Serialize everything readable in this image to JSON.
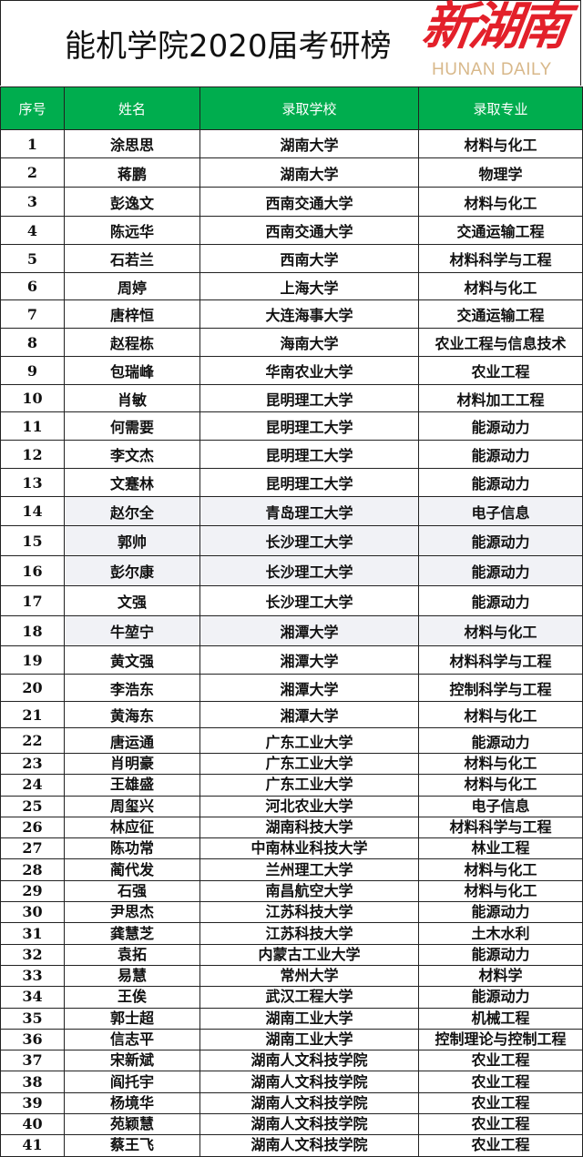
{
  "title": "能机学院2020届考研榜",
  "columns": [
    "序号",
    "姓名",
    "录取学校",
    "录取专业"
  ],
  "colors": {
    "header_bg": "#00ad4e",
    "shaded_row": "#f1f2f6",
    "watermark_red": "#e3202a"
  },
  "rows": [
    {
      "no": "1",
      "name": "涂思思",
      "school": "湖南大学",
      "major": "材料与化工"
    },
    {
      "no": "2",
      "name": "蒋鹏",
      "school": "湖南大学",
      "major": "物理学"
    },
    {
      "no": "3",
      "name": "彭逸文",
      "school": "西南交通大学",
      "major": "材料与化工"
    },
    {
      "no": "4",
      "name": "陈远华",
      "school": "西南交通大学",
      "major": "交通运输工程"
    },
    {
      "no": "5",
      "name": "石若兰",
      "school": "西南大学",
      "major": "材料科学与工程"
    },
    {
      "no": "6",
      "name": "周婷",
      "school": "上海大学",
      "major": "材料与化工"
    },
    {
      "no": "7",
      "name": "唐梓恒",
      "school": "大连海事大学",
      "major": "交通运输工程"
    },
    {
      "no": "8",
      "name": "赵程栋",
      "school": "海南大学",
      "major": "农业工程与信息技术"
    },
    {
      "no": "9",
      "name": "包瑞峰",
      "school": "华南农业大学",
      "major": "农业工程"
    },
    {
      "no": "10",
      "name": "肖敏",
      "school": "昆明理工大学",
      "major": "材料加工工程"
    },
    {
      "no": "11",
      "name": "何需要",
      "school": "昆明理工大学",
      "major": "能源动力"
    },
    {
      "no": "12",
      "name": "李文杰",
      "school": "昆明理工大学",
      "major": "能源动力"
    },
    {
      "no": "13",
      "name": "文蹇林",
      "school": "昆明理工大学",
      "major": "能源动力"
    },
    {
      "no": "14",
      "name": "赵尔全",
      "school": "青岛理工大学",
      "major": "电子信息",
      "shaded": true
    },
    {
      "no": "15",
      "name": "郭帅",
      "school": "长沙理工大学",
      "major": "能源动力",
      "shaded": true
    },
    {
      "no": "16",
      "name": "彭尔康",
      "school": "长沙理工大学",
      "major": "能源动力",
      "shaded": true
    },
    {
      "no": "17",
      "name": "文强",
      "school": "长沙理工大学",
      "major": "能源动力"
    },
    {
      "no": "18",
      "name": "牛堃宁",
      "school": "湘潭大学",
      "major": "材料与化工",
      "shaded": true
    },
    {
      "no": "19",
      "name": "黄文强",
      "school": "湘潭大学",
      "major": "材料科学与工程"
    },
    {
      "no": "20",
      "name": "李浩东",
      "school": "湘潭大学",
      "major": "控制科学与工程"
    },
    {
      "no": "21",
      "name": "黄海东",
      "school": "湘潭大学",
      "major": "材料与化工"
    },
    {
      "no": "22",
      "name": "唐运通",
      "school": "广东工业大学",
      "major": "能源动力"
    },
    {
      "no": "23",
      "name": "肖明豪",
      "school": "广东工业大学",
      "major": "材料与化工"
    },
    {
      "no": "24",
      "name": "王雄盛",
      "school": "广东工业大学",
      "major": "材料与化工"
    },
    {
      "no": "25",
      "name": "周玺兴",
      "school": "河北农业大学",
      "major": "电子信息"
    },
    {
      "no": "26",
      "name": "林应征",
      "school": "湖南科技大学",
      "major": "材料科学与工程"
    },
    {
      "no": "27",
      "name": "陈功常",
      "school": "中南林业科技大学",
      "major": "林业工程"
    },
    {
      "no": "28",
      "name": "蔺代发",
      "school": "兰州理工大学",
      "major": "材料与化工"
    },
    {
      "no": "29",
      "name": "石强",
      "school": "南昌航空大学",
      "major": "材料与化工"
    },
    {
      "no": "30",
      "name": "尹思杰",
      "school": "江苏科技大学",
      "major": "能源动力"
    },
    {
      "no": "31",
      "name": "龚慧芝",
      "school": "江苏科技大学",
      "major": "土木水利"
    },
    {
      "no": "32",
      "name": "袁拓",
      "school": "内蒙古工业大学",
      "major": "能源动力"
    },
    {
      "no": "33",
      "name": "易慧",
      "school": "常州大学",
      "major": "材料学"
    },
    {
      "no": "34",
      "name": "王俟",
      "school": "武汉工程大学",
      "major": "能源动力"
    },
    {
      "no": "35",
      "name": "郭士超",
      "school": "湖南工业大学",
      "major": "机械工程"
    },
    {
      "no": "36",
      "name": "信志平",
      "school": "湖南工业大学",
      "major": "控制理论与控制工程"
    },
    {
      "no": "37",
      "name": "宋新斌",
      "school": "湖南人文科技学院",
      "major": "农业工程"
    },
    {
      "no": "38",
      "name": "阎托宇",
      "school": "湖南人文科技学院",
      "major": "农业工程"
    },
    {
      "no": "39",
      "name": "杨境华",
      "school": "湖南人文科技学院",
      "major": "农业工程"
    },
    {
      "no": "40",
      "name": "苑颖慧",
      "school": "湖南人文科技学院",
      "major": "农业工程"
    },
    {
      "no": "41",
      "name": "蔡王飞",
      "school": "湖南人文科技学院",
      "major": "农业工程"
    }
  ],
  "watermark": {
    "cn": "新湖南",
    "en": "HUNAN DAILY"
  }
}
